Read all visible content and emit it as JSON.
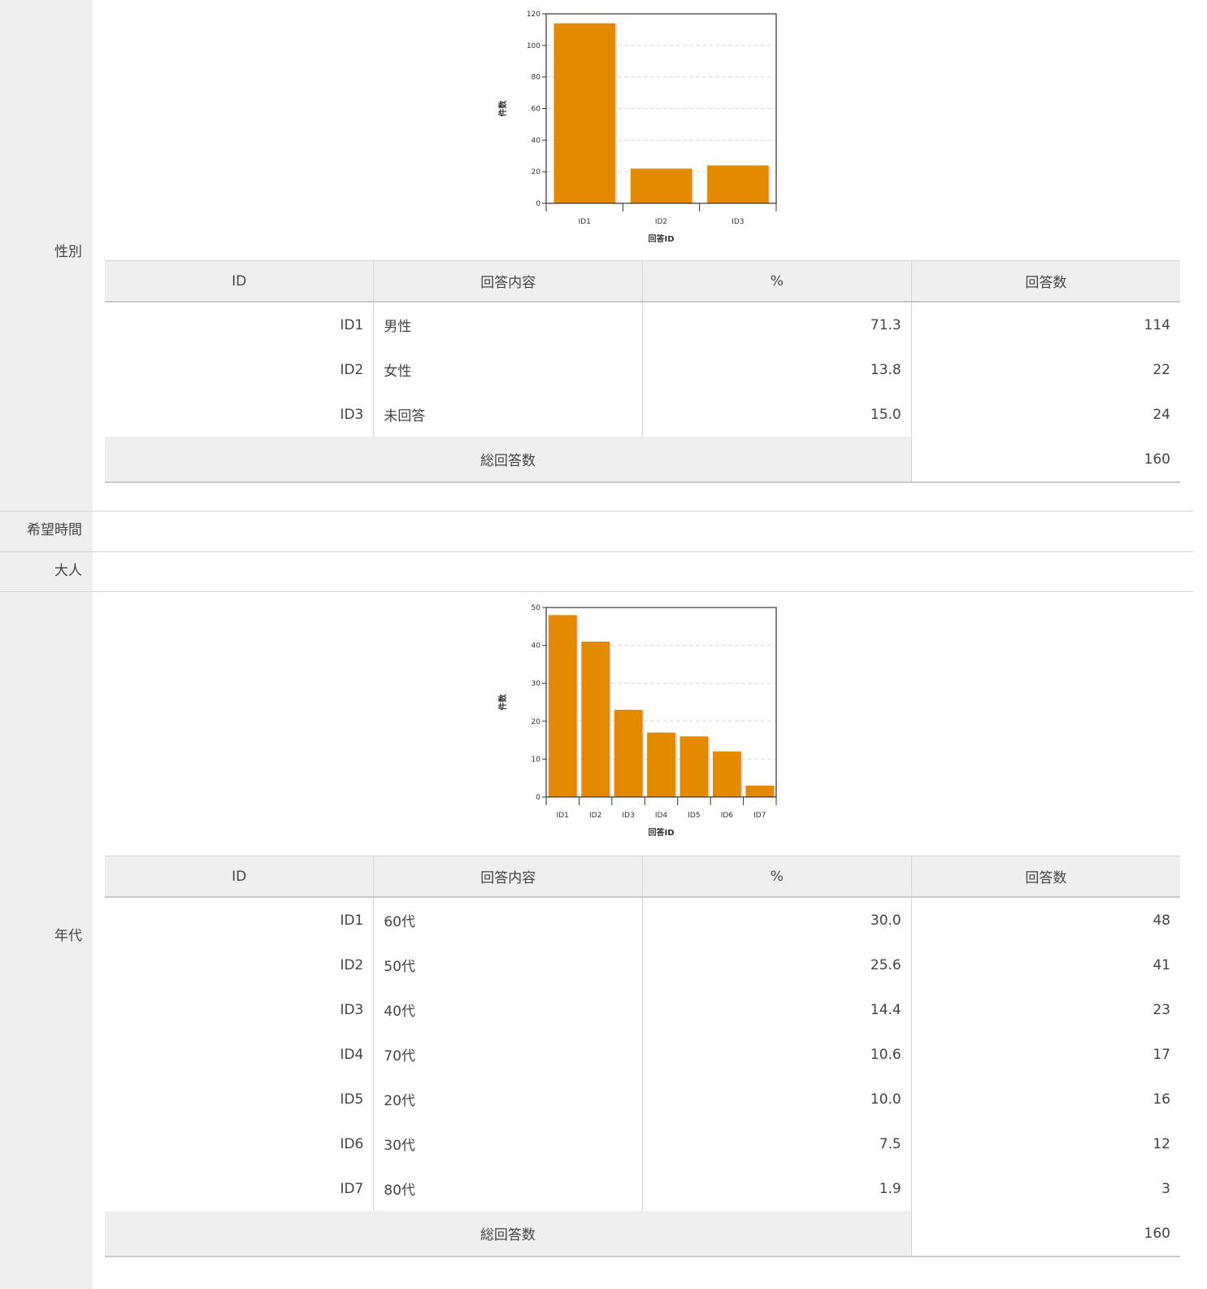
{
  "colors": {
    "bar": "#e38a00",
    "label_bg": "#efefef",
    "line": "#d4d4d4"
  },
  "rows": {
    "gender_label": "性別",
    "time_label": "希望時間",
    "adult_label": "大人",
    "age_label": "年代"
  },
  "table_headers": {
    "id": "ID",
    "content": "回答内容",
    "pct": "%",
    "count": "回答数",
    "total": "総回答数"
  },
  "gender": {
    "items": [
      {
        "id": "ID1",
        "content": "男性",
        "pct": "71.3",
        "count": "114"
      },
      {
        "id": "ID2",
        "content": "女性",
        "pct": "13.8",
        "count": "22"
      },
      {
        "id": "ID3",
        "content": "未回答",
        "pct": "15.0",
        "count": "24"
      }
    ],
    "total": "160"
  },
  "age": {
    "items": [
      {
        "id": "ID1",
        "content": "60代",
        "pct": "30.0",
        "count": "48"
      },
      {
        "id": "ID2",
        "content": "50代",
        "pct": "25.6",
        "count": "41"
      },
      {
        "id": "ID3",
        "content": "40代",
        "pct": "14.4",
        "count": "23"
      },
      {
        "id": "ID4",
        "content": "70代",
        "pct": "10.6",
        "count": "17"
      },
      {
        "id": "ID5",
        "content": "20代",
        "pct": "10.0",
        "count": "16"
      },
      {
        "id": "ID6",
        "content": "30代",
        "pct": "7.5",
        "count": "12"
      },
      {
        "id": "ID7",
        "content": "80代",
        "pct": "1.9",
        "count": "3"
      }
    ],
    "total": "160"
  },
  "chart_data": [
    {
      "type": "bar",
      "categories": [
        "ID1",
        "ID2",
        "ID3"
      ],
      "values": [
        114,
        22,
        24
      ],
      "xlabel": "回答ID",
      "ylabel": "件数",
      "ylim": [
        0,
        120
      ],
      "yticks": [
        0,
        20,
        40,
        60,
        80,
        100,
        120
      ],
      "grid": true
    },
    {
      "type": "bar",
      "categories": [
        "ID1",
        "ID2",
        "ID3",
        "ID4",
        "ID5",
        "ID6",
        "ID7"
      ],
      "values": [
        48,
        41,
        23,
        17,
        16,
        12,
        3
      ],
      "xlabel": "回答ID",
      "ylabel": "件数",
      "ylim": [
        0,
        50
      ],
      "yticks": [
        0,
        10,
        20,
        30,
        40,
        50
      ],
      "grid": true
    }
  ]
}
